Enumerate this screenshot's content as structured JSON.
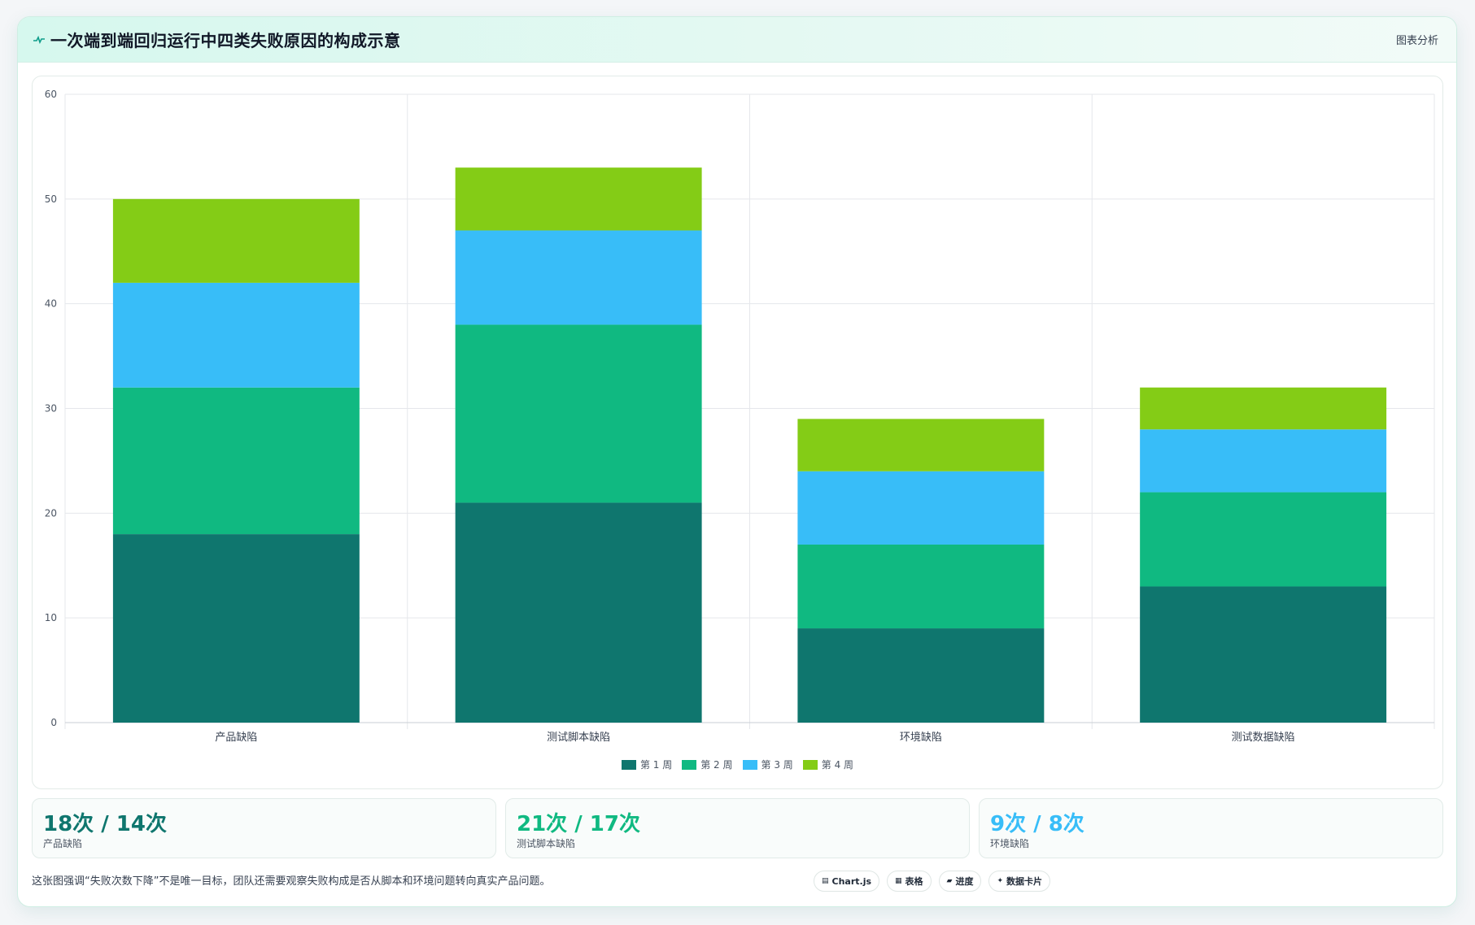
{
  "header": {
    "title": "一次端到端回归运行中四类失败原因的构成示意",
    "action_label": "图表分析"
  },
  "chart_data": {
    "type": "bar",
    "stacked": true,
    "categories": [
      "产品缺陷",
      "测试脚本缺陷",
      "环境缺陷",
      "测试数据缺陷"
    ],
    "series": [
      {
        "name": "第 1 周",
        "color": "#0f766e",
        "values": [
          18,
          21,
          9,
          13
        ]
      },
      {
        "name": "第 2 周",
        "color": "#10b981",
        "values": [
          14,
          17,
          8,
          9
        ]
      },
      {
        "name": "第 3 周",
        "color": "#38bdf8",
        "values": [
          10,
          9,
          7,
          6
        ]
      },
      {
        "name": "第 4 周",
        "color": "#84cc16",
        "values": [
          8,
          6,
          5,
          4
        ]
      }
    ],
    "ylim": [
      0,
      60
    ],
    "yticks": [
      0,
      10,
      20,
      30,
      40,
      50,
      60
    ],
    "grid": true,
    "legend_position": "bottom"
  },
  "stats": [
    {
      "value": "18次 / 14次",
      "label": "产品缺陷",
      "color": "#0f766e"
    },
    {
      "value": "21次 / 17次",
      "label": "测试脚本缺陷",
      "color": "#10b981"
    },
    {
      "value": "9次 / 8次",
      "label": "环境缺陷",
      "color": "#38bdf8"
    }
  ],
  "footer": {
    "note": "这张图强调“失败次数下降”不是唯一目标，团队还需要观察失败构成是否从脚本和环境问题转向真实产品问题。",
    "chips": [
      {
        "icon": "▤",
        "label": "Chart.js"
      },
      {
        "icon": "▦",
        "label": "表格"
      },
      {
        "icon": "▰",
        "label": "进度"
      },
      {
        "icon": "✦",
        "label": "数据卡片"
      }
    ]
  },
  "colors": {
    "accent": "#0f766e",
    "header_bg": "#d6f8ee"
  }
}
